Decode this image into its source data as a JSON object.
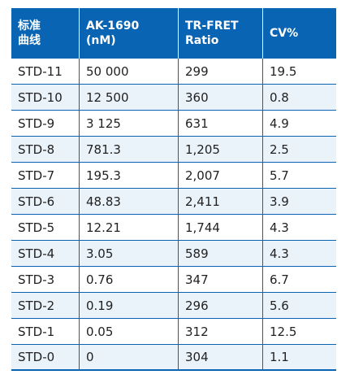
{
  "table": {
    "headers": [
      [
        "标准",
        "曲线"
      ],
      [
        "AK-1690",
        "(nM)"
      ],
      [
        "TR-FRET",
        "Ratio"
      ],
      [
        "CV%"
      ]
    ],
    "rows": [
      [
        "STD-11",
        "50 000",
        "299",
        "19.5"
      ],
      [
        "STD-10",
        "12 500",
        "360",
        "0.8"
      ],
      [
        "STD-9",
        "3 125",
        "631",
        "4.9"
      ],
      [
        "STD-8",
        "781.3",
        "1,205",
        "2.5"
      ],
      [
        "STD-7",
        "195.3",
        "2,007",
        "5.7"
      ],
      [
        "STD-6",
        "48.83",
        "2,411",
        "3.9"
      ],
      [
        "STD-5",
        "12.21",
        "1,744",
        "4.3"
      ],
      [
        "STD-4",
        "3.05",
        "589",
        "4.3"
      ],
      [
        "STD-3",
        "0.76",
        "347",
        "6.7"
      ],
      [
        "STD-2",
        "0.19",
        "296",
        "5.6"
      ],
      [
        "STD-1",
        "0.05",
        "312",
        "12.5"
      ],
      [
        "STD-0",
        "0",
        "304",
        "1.1"
      ]
    ]
  },
  "colors": {
    "header_bg": "#0a64b4",
    "stripe_bg": "#eaf2fa"
  }
}
